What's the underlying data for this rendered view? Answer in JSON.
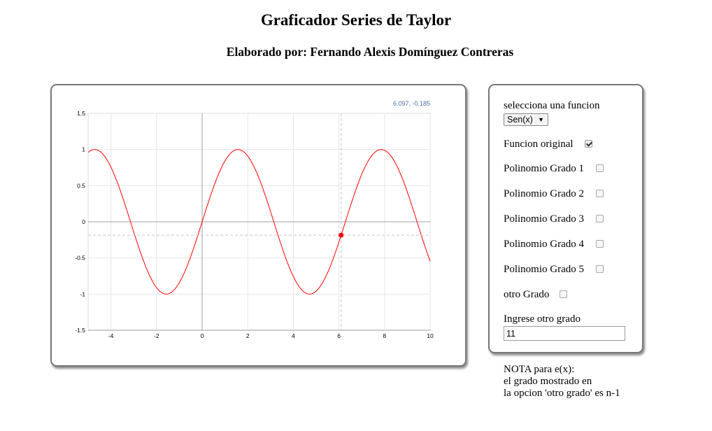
{
  "page": {
    "title": "Graficador Series de Taylor",
    "subtitle": "Elaborado por: Fernando Alexis Domínguez Contreras"
  },
  "plot": {
    "coord_readout": "6.097, -0.185",
    "cursor": {
      "x": 6.097,
      "y": -0.185
    },
    "colors": {
      "curve": "#ff0000",
      "marker": "#ff0000",
      "readout": "#4a6da7"
    }
  },
  "chart_data": {
    "type": "line",
    "function": "sin(x)",
    "xlim": [
      -5,
      10
    ],
    "ylim": [
      -1.5,
      1.5
    ],
    "x_ticks": [
      "-4",
      "-2",
      "0",
      "2",
      "4",
      "6",
      "8",
      "10"
    ],
    "y_ticks": [
      "1.5",
      "1",
      "0.5",
      "0",
      "-0.5",
      "-1",
      "-1.5"
    ],
    "grid": true
  },
  "controls": {
    "select_label": "selecciona una funcion",
    "select_value": "Sen(x)",
    "options": [
      {
        "label": "Funcion original",
        "checked": true
      },
      {
        "label": "Polinomio Grado 1",
        "checked": false
      },
      {
        "label": "Polinomio Grado 2",
        "checked": false
      },
      {
        "label": "Polinomio Grado 3",
        "checked": false
      },
      {
        "label": "Polinomio Grado 4",
        "checked": false
      },
      {
        "label": "Polinomio Grado 5",
        "checked": false
      },
      {
        "label": "otro Grado",
        "checked": false
      }
    ],
    "input_label": "Ingrese otro grado",
    "input_value": "11"
  },
  "note": {
    "line1": "NOTA para e(x):",
    "line2": "el grado mostrado en",
    "line3": "la opcion 'otro grado' es n-1"
  }
}
